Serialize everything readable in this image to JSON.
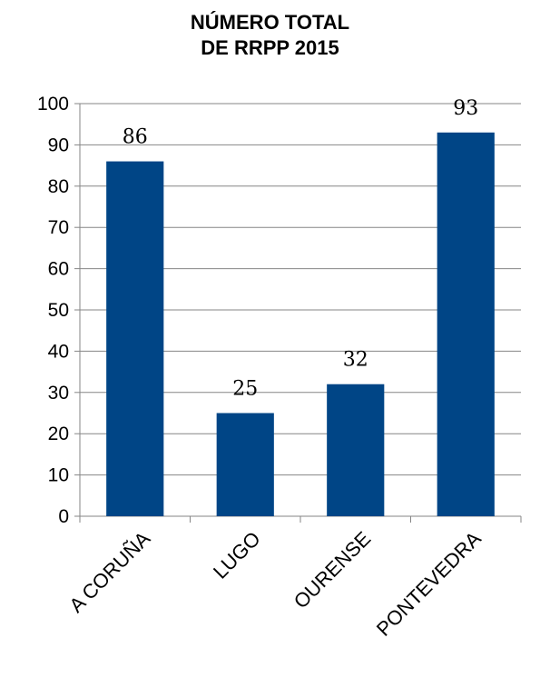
{
  "chart_data": {
    "type": "bar",
    "title_lines": [
      "NÚMERO TOTAL",
      "DE RRPP 2015"
    ],
    "categories": [
      "A CORUÑA",
      "LUGO",
      "OURENSE",
      "PONTEVEDRA"
    ],
    "values": [
      86,
      25,
      32,
      93
    ],
    "data_labels": [
      "86",
      "25",
      "32",
      "93"
    ],
    "xlabel": "",
    "ylabel": "",
    "ylim": [
      0,
      100
    ],
    "yticks": [
      0,
      10,
      20,
      30,
      40,
      50,
      60,
      70,
      80,
      90,
      100
    ],
    "grid": true,
    "legend": "none",
    "colors": {
      "bar": "#004586",
      "grid": "#868686",
      "axis": "#868686"
    }
  }
}
